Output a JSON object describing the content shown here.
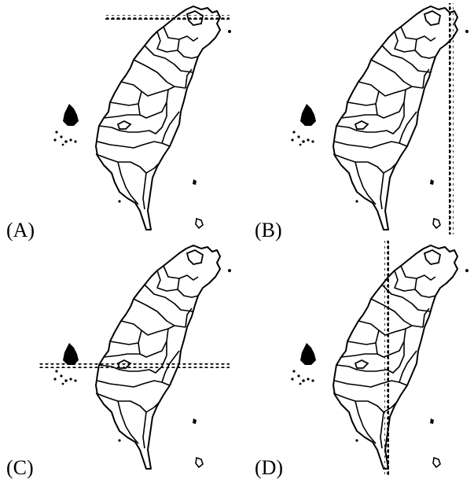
{
  "panels": [
    {
      "id": "A",
      "label": "(A)",
      "line": "horizontal-north"
    },
    {
      "id": "B",
      "label": "(B)",
      "line": "vertical-east"
    },
    {
      "id": "C",
      "label": "(C)",
      "line": "horizontal-central"
    },
    {
      "id": "D",
      "label": "(D)",
      "line": "vertical-west"
    }
  ]
}
